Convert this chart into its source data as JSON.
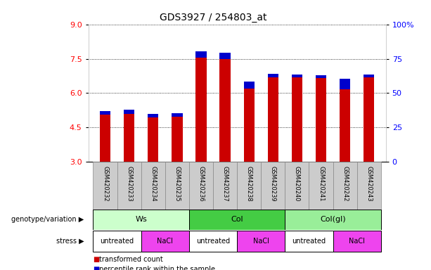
{
  "title": "GDS3927 / 254803_at",
  "samples": [
    "GSM420232",
    "GSM420233",
    "GSM420234",
    "GSM420235",
    "GSM420236",
    "GSM420237",
    "GSM420238",
    "GSM420239",
    "GSM420240",
    "GSM420241",
    "GSM420242",
    "GSM420243"
  ],
  "red_values": [
    5.05,
    5.1,
    4.95,
    4.97,
    7.82,
    7.75,
    6.5,
    6.85,
    6.82,
    6.78,
    6.62,
    6.82
  ],
  "blue_top": [
    5.22,
    5.27,
    5.11,
    5.13,
    7.55,
    7.5,
    6.2,
    6.68,
    6.68,
    6.65,
    6.17,
    6.68
  ],
  "y_min": 3.0,
  "y_max": 9.0,
  "y_ticks_left": [
    3,
    4.5,
    6,
    7.5,
    9
  ],
  "y_ticks_right_pos": [
    3.0,
    4.5,
    6.0,
    7.5,
    9.0
  ],
  "y_ticks_right_labels": [
    "0",
    "25",
    "50",
    "75",
    "100%"
  ],
  "bar_width": 0.45,
  "red_color": "#cc0000",
  "blue_color": "#0000cc",
  "grid_color": "#000000",
  "sample_box_color": "#cccccc",
  "genotype_groups": [
    {
      "label": "Ws",
      "start": 0,
      "end": 4,
      "color": "#ccffcc"
    },
    {
      "label": "Col",
      "start": 4,
      "end": 8,
      "color": "#44cc44"
    },
    {
      "label": "Col(gl)",
      "start": 8,
      "end": 12,
      "color": "#99ee99"
    }
  ],
  "stress_groups": [
    {
      "label": "untreated",
      "start": 0,
      "end": 2,
      "color": "#ffffff"
    },
    {
      "label": "NaCl",
      "start": 2,
      "end": 4,
      "color": "#ee44ee"
    },
    {
      "label": "untreated",
      "start": 4,
      "end": 6,
      "color": "#ffffff"
    },
    {
      "label": "NaCl",
      "start": 6,
      "end": 8,
      "color": "#ee44ee"
    },
    {
      "label": "untreated",
      "start": 8,
      "end": 10,
      "color": "#ffffff"
    },
    {
      "label": "NaCl",
      "start": 10,
      "end": 12,
      "color": "#ee44ee"
    }
  ],
  "legend_red": "transformed count",
  "legend_blue": "percentile rank within the sample",
  "genotype_label": "genotype/variation",
  "stress_label": "stress",
  "title_fontsize": 10,
  "tick_fontsize": 8,
  "label_fontsize": 7,
  "sample_fontsize": 6
}
